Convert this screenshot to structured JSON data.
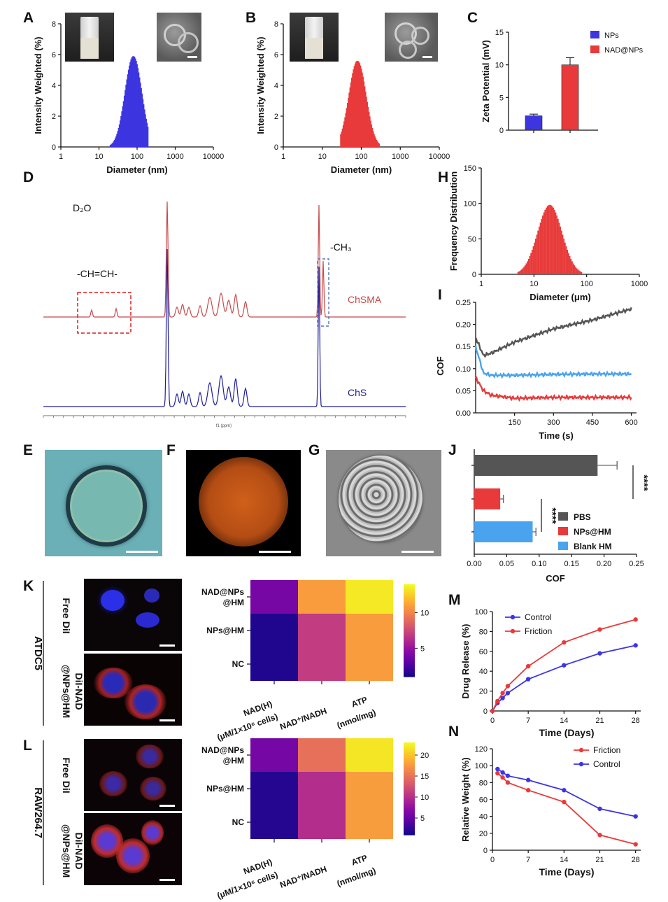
{
  "panel_labels": {
    "A": "A",
    "B": "B",
    "C": "C",
    "D": "D",
    "E": "E",
    "F": "F",
    "G": "G",
    "H": "H",
    "I": "I",
    "J": "J",
    "K": "K",
    "L": "L",
    "M": "M",
    "N": "N"
  },
  "dls_axes": {
    "ylabel": "Intensity Weighted (%)",
    "xlabel": "Diameter (nm)",
    "yticks": [
      "0",
      "2",
      "4",
      "6",
      "8"
    ],
    "xticks": [
      "1",
      "10",
      "100",
      "1000",
      "10000"
    ]
  },
  "nmr": {
    "solvent": "D₂O",
    "vinyl_label": "-CH=CH-",
    "methyl_label": "-CH₃",
    "upper_trace": "ChSMA",
    "lower_trace": "ChS",
    "xaxis": "f1 (ppm)"
  },
  "heatmap_common": {
    "rows": [
      "NAD@NPs\n@HM",
      "NPs@HM",
      "NC"
    ],
    "col1_line1": "NAD(H)",
    "col1_line2": "(μM/1×10⁶ cells)",
    "col2": "NAD⁺/NADH",
    "col3_line1": "ATP",
    "col3_line2": "(nmol/mg)"
  },
  "cells_K": {
    "cell_line": "ATDC5",
    "row1": "Free DiI",
    "row2_line1": "DiI-NAD",
    "row2_line2": "@NPs@HM"
  },
  "cells_L": {
    "cell_line": "RAW264.7",
    "row1": "Free DiI",
    "row2_line1": "DiI-NAD",
    "row2_line2": "@NPs@HM"
  },
  "colors": {
    "blue": "#3d35e0",
    "red": "#e83a3a",
    "gray": "#555555",
    "lightblue": "#4aa3ef",
    "nmr_red": "#c8494a",
    "nmr_blue": "#1d1d9a"
  },
  "chart_data": [
    {
      "panel": "A",
      "type": "bar",
      "title": "",
      "xlabel": "Diameter (nm)",
      "ylabel": "Intensity Weighted (%)",
      "xscale": "log",
      "xlim": [
        1,
        10000
      ],
      "ylim": [
        0,
        8
      ],
      "series": [
        {
          "name": "",
          "color": "#3d35e0",
          "peak_x": 80,
          "peak_y": 5.9,
          "range": [
            20,
            200
          ]
        }
      ]
    },
    {
      "panel": "B",
      "type": "bar",
      "title": "",
      "xlabel": "Diameter (nm)",
      "ylabel": "Intensity Weighted (%)",
      "xscale": "log",
      "xlim": [
        1,
        10000
      ],
      "ylim": [
        0,
        8
      ],
      "series": [
        {
          "name": "",
          "color": "#e83a3a",
          "peak_x": 80,
          "peak_y": 5.6,
          "range": [
            30,
            300
          ]
        }
      ]
    },
    {
      "panel": "C",
      "type": "bar",
      "title": "",
      "xlabel": "",
      "ylabel": "Zeta Potential (mV)",
      "ylim": [
        0,
        15
      ],
      "yticks": [
        "0",
        "5",
        "10",
        "15"
      ],
      "categories": [
        "NPs",
        "NAD@NPs"
      ],
      "values": [
        2.2,
        10.0
      ],
      "errors": [
        0.25,
        1.1
      ],
      "colors": [
        "#3d35e0",
        "#e83a3a"
      ]
    },
    {
      "panel": "H",
      "type": "bar",
      "title": "",
      "xlabel": "Diameter (μm)",
      "ylabel": "Frequency Distribution",
      "xscale": "log",
      "xlim": [
        1,
        1000
      ],
      "ylim": [
        0,
        150
      ],
      "yticks": [
        "0",
        "50",
        "100",
        "150"
      ],
      "xticks": [
        "1",
        "10",
        "100",
        "1000"
      ],
      "series": [
        {
          "name": "",
          "color": "#e83a3a",
          "peak_x": 20,
          "peak_y": 98,
          "range": [
            5,
            80
          ]
        }
      ]
    },
    {
      "panel": "I",
      "type": "line",
      "title": "",
      "xlabel": "Time (s)",
      "ylabel": "COF",
      "xlim": [
        0,
        620
      ],
      "ylim": [
        0,
        0.25
      ],
      "xticks": [
        "150",
        "300",
        "450",
        "600"
      ],
      "yticks": [
        "0.00",
        "0.05",
        "0.10",
        "0.15",
        "0.20",
        "0.25"
      ],
      "series": [
        {
          "name": "PBS",
          "color": "#555555",
          "x": [
            0,
            30,
            60,
            150,
            300,
            450,
            600
          ],
          "y": [
            0.17,
            0.13,
            0.135,
            0.16,
            0.19,
            0.21,
            0.235
          ]
        },
        {
          "name": "Blank HM",
          "color": "#4aa3ef",
          "x": [
            0,
            30,
            60,
            150,
            300,
            450,
            600
          ],
          "y": [
            0.15,
            0.09,
            0.085,
            0.085,
            0.087,
            0.088,
            0.088
          ]
        },
        {
          "name": "NPs@HM",
          "color": "#e83a3a",
          "x": [
            0,
            30,
            60,
            150,
            300,
            450,
            600
          ],
          "y": [
            0.08,
            0.05,
            0.04,
            0.033,
            0.035,
            0.035,
            0.035
          ]
        }
      ]
    },
    {
      "panel": "J",
      "type": "bar",
      "title": "",
      "xlabel": "COF",
      "orientation": "horizontal",
      "xlim": [
        0,
        0.25
      ],
      "xticks": [
        "0.00",
        "0.05",
        "0.10",
        "0.15",
        "0.20",
        "0.25"
      ],
      "categories": [
        "PBS",
        "NPs@HM",
        "Blank HM"
      ],
      "values": [
        0.19,
        0.04,
        0.09
      ],
      "errors": [
        0.03,
        0.005,
        0.005
      ],
      "colors": [
        "#555555",
        "#e83a3a",
        "#4aa3ef"
      ],
      "significance": [
        "****",
        "****"
      ]
    },
    {
      "panel": "K",
      "type": "heatmap",
      "title": "",
      "rows": [
        "NAD@NPs @HM",
        "NPs@HM",
        "NC"
      ],
      "columns": [
        "NAD(H) (μM/1×10⁶ cells)",
        "NAD⁺/NADH",
        "ATP (nmol/mg)"
      ],
      "values": [
        [
          4,
          11,
          13.5
        ],
        [
          1.5,
          7,
          11
        ],
        [
          1.5,
          7,
          11
        ]
      ],
      "colorbar_ticks": [
        "5",
        "10"
      ],
      "vmin": 1,
      "vmax": 14
    },
    {
      "panel": "L",
      "type": "heatmap",
      "title": "",
      "rows": [
        "NAD@NPs @HM",
        "NPs@HM",
        "NC"
      ],
      "columns": [
        "NAD(H) (μM/1×10⁶ cells)",
        "NAD⁺/NADH",
        "ATP (nmol/mg)"
      ],
      "values": [
        [
          6,
          15,
          22
        ],
        [
          2,
          10,
          18
        ],
        [
          2,
          10,
          18
        ]
      ],
      "colorbar_ticks": [
        "5",
        "10",
        "15",
        "20"
      ],
      "vmin": 1,
      "vmax": 23
    },
    {
      "panel": "M",
      "type": "line",
      "title": "",
      "xlabel": "Time (Days)",
      "ylabel": "Drug Release (%)",
      "xlim": [
        0,
        29
      ],
      "ylim": [
        0,
        100
      ],
      "xticks": [
        "0",
        "7",
        "14",
        "21",
        "28"
      ],
      "yticks": [
        "0",
        "20",
        "40",
        "60",
        "80",
        "100"
      ],
      "series": [
        {
          "name": "Control",
          "color": "#3d35e0",
          "x": [
            0,
            1,
            2,
            3,
            7,
            14,
            21,
            28
          ],
          "y": [
            0,
            8,
            13,
            18,
            32,
            46,
            58,
            66
          ]
        },
        {
          "name": "Friction",
          "color": "#e83a3a",
          "x": [
            0,
            1,
            2,
            3,
            7,
            14,
            21,
            28
          ],
          "y": [
            0,
            10,
            18,
            25,
            45,
            69,
            82,
            92
          ]
        }
      ]
    },
    {
      "panel": "N",
      "type": "line",
      "title": "",
      "xlabel": "Time (Days)",
      "ylabel": "Relative Weight (%)",
      "xlim": [
        0,
        29
      ],
      "ylim": [
        0,
        120
      ],
      "xticks": [
        "0",
        "7",
        "14",
        "21",
        "28"
      ],
      "yticks": [
        "0",
        "20",
        "40",
        "60",
        "80",
        "100",
        "120"
      ],
      "series": [
        {
          "name": "Friction",
          "color": "#e83a3a",
          "x": [
            1,
            2,
            3,
            7,
            14,
            21,
            28
          ],
          "y": [
            91,
            86,
            80,
            71,
            57,
            18,
            7
          ]
        },
        {
          "name": "Control",
          "color": "#3d35e0",
          "x": [
            1,
            2,
            3,
            7,
            14,
            21,
            28
          ],
          "y": [
            96,
            92,
            88,
            83,
            71,
            49,
            40
          ]
        }
      ]
    }
  ]
}
